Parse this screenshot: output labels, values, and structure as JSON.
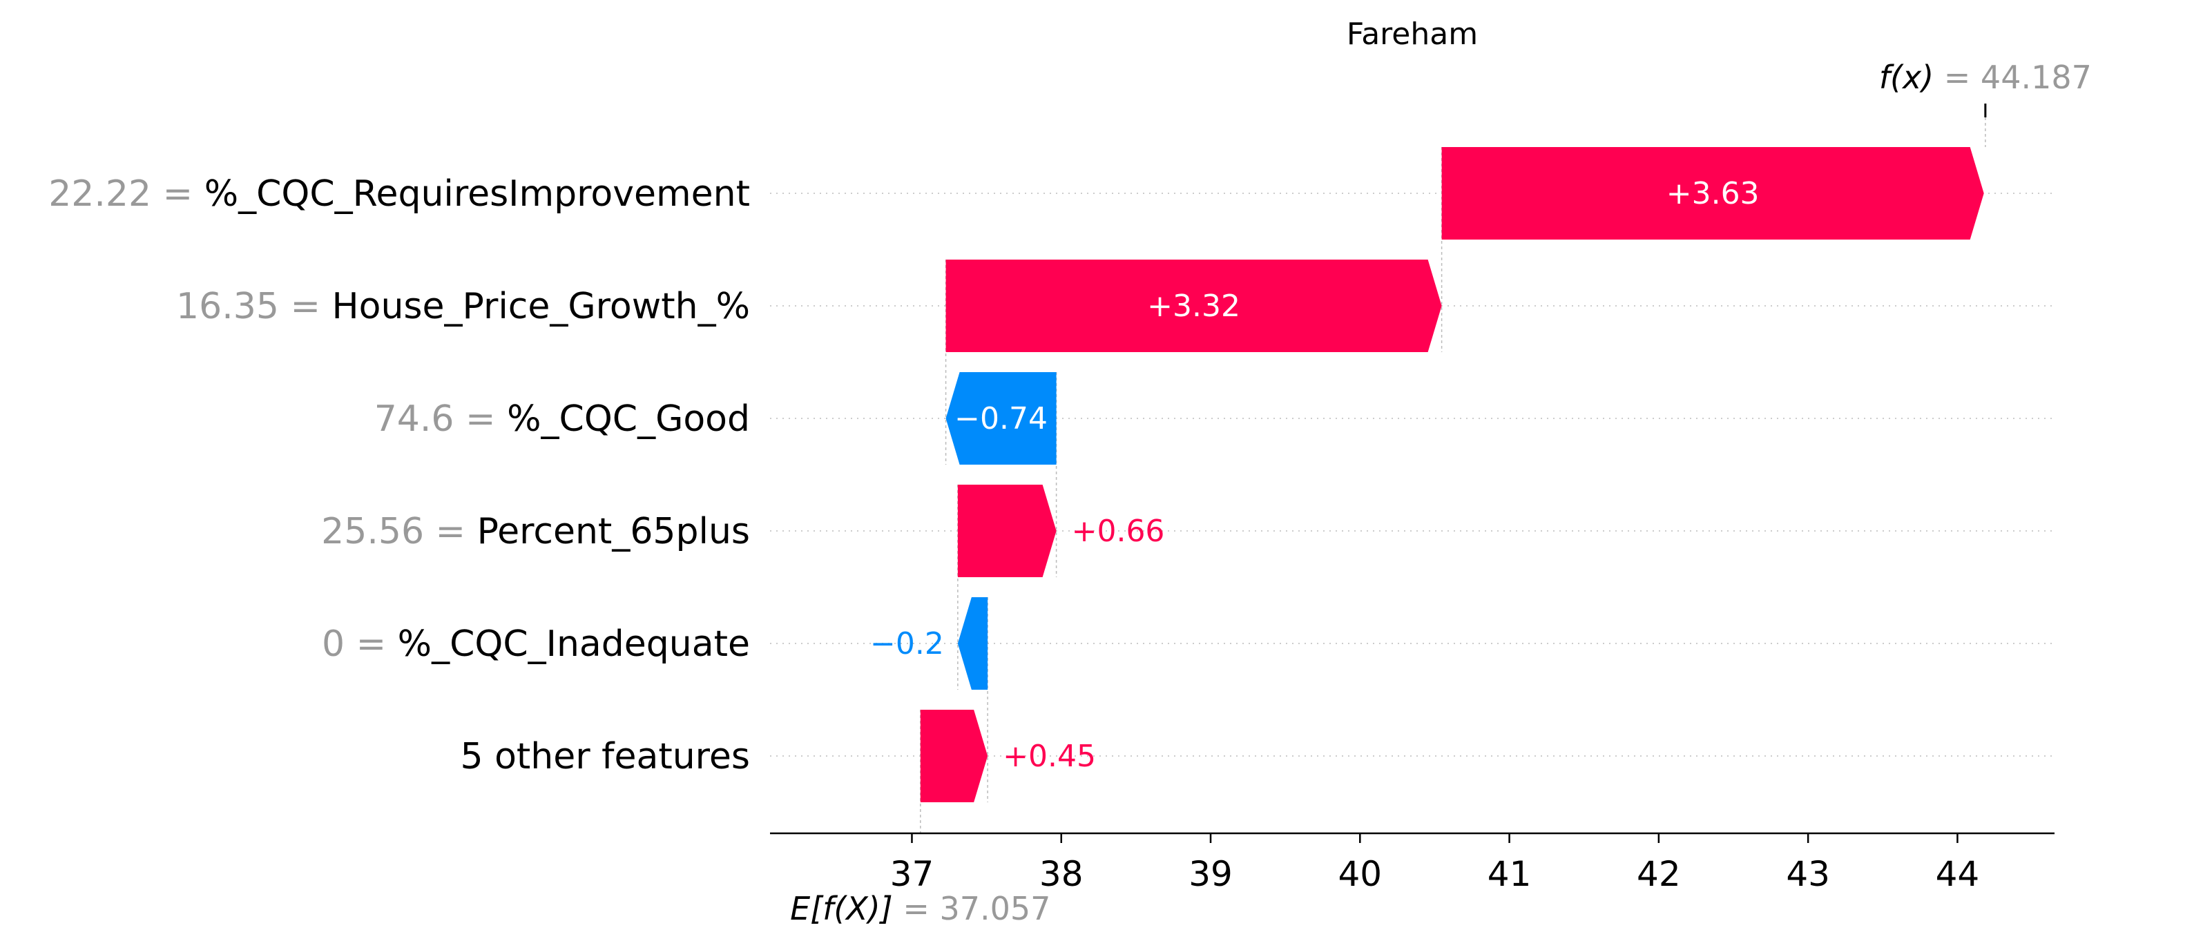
{
  "chart_data": {
    "type": "waterfall",
    "title": "Fareham",
    "base_value": 37.057,
    "base_label_prefix": "E[f(X)]",
    "base_label_value": "= 37.057",
    "output_value": 44.187,
    "output_label_prefix": "f(x)",
    "output_label_value": "= 44.187",
    "features": [
      {
        "value": "22.22 =",
        "name": "%_CQC_RequiresImprovement",
        "contribution": 3.63,
        "label": "+3.63"
      },
      {
        "value": "16.35 =",
        "name": "House_Price_Growth_%",
        "contribution": 3.32,
        "label": "+3.32"
      },
      {
        "value": "74.6 =",
        "name": "%_CQC_Good",
        "contribution": -0.74,
        "label": "−0.74"
      },
      {
        "value": "25.56 =",
        "name": "Percent_65plus",
        "contribution": 0.66,
        "label": "+0.66"
      },
      {
        "value": "0 =",
        "name": "%_CQC_Inadequate",
        "contribution": -0.2,
        "label": "−0.2"
      },
      {
        "value": "",
        "name": "5 other features",
        "contribution": 0.45,
        "label": "+0.45"
      }
    ],
    "x_ticks": [
      "37",
      "38",
      "39",
      "40",
      "41",
      "42",
      "43",
      "44"
    ],
    "xlim": [
      36.05,
      44.65
    ],
    "colors": {
      "positive": "#ff0051",
      "negative": "#008bfb",
      "muted": "#999999"
    }
  }
}
